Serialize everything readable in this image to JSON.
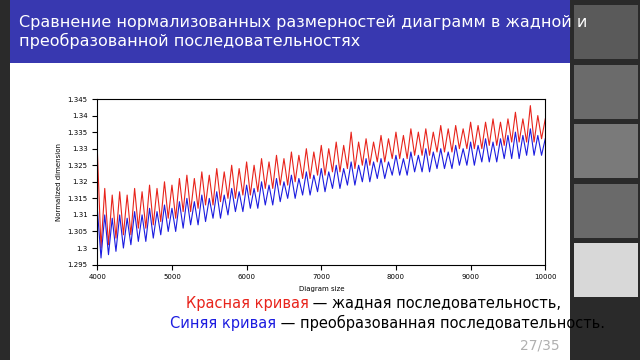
{
  "chart_data": {
    "type": "line",
    "title": "Сравнение нормализованных размерностей диаграмм в жадной и преобразованной последовательностях",
    "x_label": "Diagram size",
    "y_label": "Normalized dimension",
    "x": [
      4000,
      4050,
      4100,
      4150,
      4200,
      4250,
      4300,
      4350,
      4400,
      4450,
      4500,
      4550,
      4600,
      4650,
      4700,
      4750,
      4800,
      4850,
      4900,
      4950,
      5000,
      5050,
      5100,
      5150,
      5200,
      5250,
      5300,
      5350,
      5400,
      5450,
      5500,
      5550,
      5600,
      5650,
      5700,
      5750,
      5800,
      5850,
      5900,
      5950,
      6000,
      6050,
      6100,
      6150,
      6200,
      6250,
      6300,
      6350,
      6400,
      6450,
      6500,
      6550,
      6600,
      6650,
      6700,
      6750,
      6800,
      6850,
      6900,
      6950,
      7000,
      7050,
      7100,
      7150,
      7200,
      7250,
      7300,
      7350,
      7400,
      7450,
      7500,
      7550,
      7600,
      7650,
      7700,
      7750,
      7800,
      7850,
      7900,
      7950,
      8000,
      8050,
      8100,
      8150,
      8200,
      8250,
      8300,
      8350,
      8400,
      8450,
      8500,
      8550,
      8600,
      8650,
      8700,
      8750,
      8800,
      8850,
      8900,
      8950,
      9000,
      9050,
      9100,
      9150,
      9200,
      9250,
      9300,
      9350,
      9400,
      9450,
      9500,
      9550,
      9600,
      9650,
      9700,
      9750,
      9800,
      9850,
      9900,
      9950,
      10000
    ],
    "series": [
      {
        "color": "#e8241c",
        "values": [
          1.33,
          1.3,
          1.318,
          1.301,
          1.316,
          1.303,
          1.317,
          1.304,
          1.316,
          1.304,
          1.318,
          1.306,
          1.317,
          1.306,
          1.319,
          1.307,
          1.318,
          1.308,
          1.32,
          1.309,
          1.319,
          1.309,
          1.321,
          1.311,
          1.322,
          1.311,
          1.321,
          1.312,
          1.323,
          1.313,
          1.322,
          1.313,
          1.324,
          1.314,
          1.323,
          1.315,
          1.325,
          1.315,
          1.324,
          1.316,
          1.326,
          1.316,
          1.325,
          1.317,
          1.327,
          1.318,
          1.326,
          1.318,
          1.328,
          1.319,
          1.327,
          1.319,
          1.329,
          1.32,
          1.328,
          1.321,
          1.33,
          1.321,
          1.329,
          1.322,
          1.331,
          1.322,
          1.33,
          1.323,
          1.332,
          1.323,
          1.331,
          1.324,
          1.335,
          1.324,
          1.332,
          1.325,
          1.333,
          1.325,
          1.332,
          1.326,
          1.334,
          1.326,
          1.333,
          1.327,
          1.335,
          1.327,
          1.334,
          1.327,
          1.336,
          1.328,
          1.335,
          1.328,
          1.336,
          1.328,
          1.335,
          1.329,
          1.337,
          1.329,
          1.336,
          1.329,
          1.337,
          1.33,
          1.336,
          1.33,
          1.338,
          1.33,
          1.337,
          1.33,
          1.338,
          1.331,
          1.339,
          1.331,
          1.338,
          1.331,
          1.339,
          1.332,
          1.341,
          1.332,
          1.339,
          1.332,
          1.343,
          1.332,
          1.34,
          1.333,
          1.339
        ]
      },
      {
        "color": "#1c1ce0",
        "values": [
          1.312,
          1.297,
          1.31,
          1.298,
          1.309,
          1.299,
          1.31,
          1.3,
          1.309,
          1.301,
          1.311,
          1.302,
          1.31,
          1.302,
          1.312,
          1.303,
          1.311,
          1.304,
          1.313,
          1.305,
          1.312,
          1.305,
          1.314,
          1.306,
          1.315,
          1.307,
          1.314,
          1.307,
          1.316,
          1.308,
          1.315,
          1.309,
          1.317,
          1.309,
          1.316,
          1.31,
          1.318,
          1.311,
          1.317,
          1.311,
          1.319,
          1.312,
          1.318,
          1.312,
          1.32,
          1.313,
          1.319,
          1.313,
          1.321,
          1.314,
          1.32,
          1.315,
          1.322,
          1.315,
          1.321,
          1.316,
          1.323,
          1.316,
          1.322,
          1.317,
          1.324,
          1.317,
          1.323,
          1.318,
          1.325,
          1.318,
          1.324,
          1.319,
          1.326,
          1.319,
          1.325,
          1.32,
          1.327,
          1.32,
          1.326,
          1.321,
          1.327,
          1.321,
          1.326,
          1.322,
          1.328,
          1.322,
          1.327,
          1.322,
          1.329,
          1.323,
          1.328,
          1.323,
          1.33,
          1.323,
          1.329,
          1.324,
          1.33,
          1.324,
          1.329,
          1.324,
          1.331,
          1.325,
          1.33,
          1.325,
          1.332,
          1.325,
          1.331,
          1.326,
          1.333,
          1.326,
          1.332,
          1.326,
          1.333,
          1.327,
          1.334,
          1.327,
          1.335,
          1.327,
          1.334,
          1.328,
          1.336,
          1.328,
          1.334,
          1.328,
          1.333
        ]
      }
    ],
    "xlim": [
      4000,
      10000
    ],
    "xticks": [
      4000,
      5000,
      6000,
      7000,
      8000,
      9000,
      10000
    ],
    "ylim": [
      1.295,
      1.345
    ],
    "yticks": [
      1.295,
      1.3,
      1.305,
      1.31,
      1.315,
      1.32,
      1.325,
      1.33,
      1.335,
      1.34,
      1.345
    ],
    "grid": false,
    "captions": [
      {
        "colored": "Красная кривая",
        "color": "#e8241c",
        "rest": " — жадная последовательность,"
      },
      {
        "colored": "Синяя кривая",
        "color": "#1c1ce0",
        "rest": " — преобразованная последовательность."
      }
    ],
    "page": "27/35"
  }
}
